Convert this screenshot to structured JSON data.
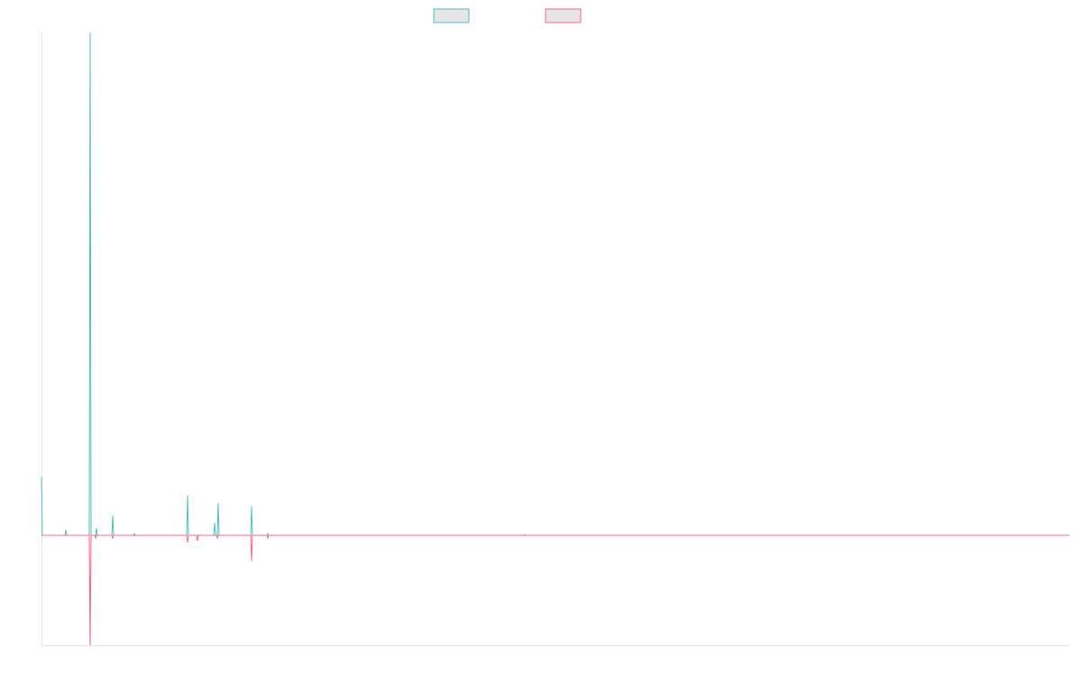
{
  "chart_data": {
    "type": "line",
    "title": "",
    "xlabel": "",
    "ylabel": "",
    "grid": false,
    "legend_position": "top-center",
    "x": [
      0,
      1,
      2,
      3,
      4,
      5,
      6,
      7,
      8,
      9,
      10,
      11,
      12,
      13,
      14,
      15,
      16,
      17,
      18,
      19,
      20,
      21,
      22,
      23,
      24,
      25,
      26,
      27,
      28,
      29,
      30,
      31,
      32,
      33,
      34,
      35,
      36,
      37,
      38,
      39,
      40,
      41,
      42,
      43,
      44,
      45,
      46,
      47,
      48,
      49,
      50,
      51,
      52,
      53,
      54,
      55,
      56,
      57,
      58,
      59,
      60,
      61,
      62,
      63,
      64,
      65,
      66,
      67,
      68,
      69,
      70,
      71,
      72,
      73,
      74,
      75,
      76,
      77,
      78,
      79,
      80,
      81,
      82,
      83,
      84,
      85,
      86,
      87,
      88,
      89,
      90,
      91,
      92,
      93,
      94,
      95,
      96,
      97,
      98,
      99,
      100,
      101,
      102,
      103,
      104,
      105,
      106,
      107,
      108,
      109,
      110,
      111,
      112,
      113,
      114,
      115,
      116,
      117,
      118,
      119,
      120,
      121,
      122,
      123,
      124,
      125,
      126,
      127,
      128,
      129,
      130,
      131,
      132,
      133,
      134,
      135,
      136,
      137,
      138,
      139,
      140,
      141,
      142,
      143,
      144,
      145,
      146,
      147,
      148,
      149,
      150,
      151,
      152,
      153,
      154,
      155,
      156,
      157,
      158,
      159,
      160,
      161,
      162,
      163,
      164,
      165,
      166,
      167,
      168,
      169,
      170,
      171,
      172,
      173,
      174,
      175,
      176,
      177,
      178,
      179,
      180,
      181,
      182,
      183,
      184,
      185,
      186,
      187,
      188,
      189,
      190,
      191,
      192,
      193,
      194,
      195,
      196,
      197,
      198,
      199,
      200,
      201,
      202,
      203,
      204,
      205,
      206,
      207,
      208,
      209,
      210,
      211,
      212,
      213,
      214,
      215,
      216,
      217,
      218,
      219,
      220,
      221,
      222,
      223,
      224,
      225,
      226,
      227,
      228,
      229,
      230,
      231,
      232,
      233,
      234,
      235,
      236,
      237,
      238,
      239,
      240,
      241,
      242,
      243,
      244,
      245,
      246,
      247,
      248,
      249,
      250,
      251,
      252,
      253,
      254,
      255,
      256,
      257,
      258,
      259,
      260,
      261,
      262,
      263,
      264,
      265,
      266,
      267,
      268,
      269,
      270,
      271,
      272,
      273,
      274,
      275,
      276,
      277,
      278,
      279,
      280,
      281,
      282,
      283,
      284,
      285,
      286,
      287,
      288,
      289,
      290,
      291,
      292,
      293,
      294,
      295,
      296,
      297,
      298,
      299,
      300,
      301,
      302,
      303,
      304,
      305,
      306,
      307,
      308,
      309,
      310,
      311,
      312,
      313,
      314,
      315,
      316,
      317,
      318,
      319,
      320,
      321,
      322,
      323,
      324,
      325,
      326,
      327,
      328,
      329,
      330,
      331,
      332,
      333,
      334,
      335,
      336,
      337,
      338,
      339,
      340,
      341,
      342,
      343,
      344,
      345,
      346,
      347,
      348,
      349,
      350,
      351,
      352,
      353,
      354,
      355,
      356,
      357,
      358,
      359,
      360,
      361,
      362,
      363,
      364,
      365,
      366,
      367,
      368,
      369,
      370,
      371,
      372,
      373,
      374,
      375,
      376,
      377,
      378,
      379,
      380,
      381,
      382,
      383,
      384,
      385,
      386,
      387,
      388,
      389,
      390,
      391,
      392,
      393,
      394,
      395,
      396,
      397,
      398,
      399,
      400,
      401,
      402,
      403,
      404,
      405,
      406,
      407,
      408,
      409,
      410,
      411,
      412,
      413,
      414,
      415,
      416,
      417,
      418,
      419,
      420,
      421,
      422,
      423,
      424,
      425,
      426,
      427,
      428,
      429,
      430,
      431,
      432,
      433,
      434,
      435,
      436,
      437,
      438,
      439,
      440,
      441,
      442,
      443,
      444,
      445,
      446,
      447,
      448,
      449,
      450,
      451,
      452,
      453,
      454,
      455,
      456,
      457,
      458,
      459,
      460,
      461,
      462,
      463,
      464,
      465,
      466,
      467,
      468,
      469,
      470,
      471,
      472,
      473,
      474,
      475,
      476,
      477,
      478,
      479,
      480,
      481,
      482,
      483,
      484,
      485,
      486,
      487,
      488,
      489,
      490,
      491,
      492,
      493,
      494,
      495,
      496,
      497,
      498,
      499,
      500,
      501,
      502,
      503,
      504,
      505,
      506,
      507,
      508,
      509,
      510,
      511,
      512,
      513,
      514,
      515,
      516,
      517,
      518,
      519,
      520,
      521,
      522,
      523,
      524,
      525,
      526,
      527,
      528,
      529,
      530,
      531,
      532,
      533,
      534,
      535,
      536,
      537,
      538,
      539,
      540,
      541,
      542,
      543,
      544,
      545,
      546,
      547,
      548,
      549,
      550,
      551,
      552,
      553,
      554,
      555,
      556,
      557,
      558,
      559,
      560,
      561,
      562,
      563,
      564,
      565,
      566,
      567,
      568,
      569,
      570,
      571,
      572,
      573,
      574,
      575,
      576,
      577,
      578,
      579,
      580,
      581,
      582,
      583,
      584,
      585,
      586,
      587,
      588,
      589,
      590,
      591,
      592,
      593,
      594,
      595,
      596,
      597,
      598,
      599,
      600,
      601,
      602,
      603,
      604,
      605,
      606,
      607,
      608,
      609,
      610,
      611,
      612,
      613,
      614,
      615,
      616,
      617,
      618,
      619,
      620,
      621,
      622,
      623,
      624,
      625,
      626,
      627,
      628,
      629,
      630,
      631,
      632,
      633,
      634,
      635,
      636,
      637,
      638,
      639,
      640,
      641,
      642,
      643,
      644,
      645,
      646,
      647,
      648,
      649,
      650,
      651,
      652,
      653,
      654,
      655,
      656,
      657,
      658,
      659,
      660,
      661,
      662,
      663,
      664,
      665,
      666,
      667,
      668,
      669,
      670,
      671,
      672,
      673,
      674,
      675,
      676,
      677,
      678,
      679,
      680,
      681,
      682,
      683,
      684,
      685,
      686,
      687,
      688,
      689,
      690,
      691,
      692,
      693,
      694,
      695,
      696,
      697,
      698,
      699,
      700,
      701,
      702,
      703,
      704,
      705,
      706,
      707,
      708,
      709,
      710,
      711,
      712,
      713,
      714,
      715,
      716,
      717,
      718,
      719,
      720,
      721,
      722,
      723,
      724,
      725,
      726,
      727,
      728,
      729,
      730,
      731,
      732,
      733,
      734,
      735,
      736,
      737,
      738,
      739,
      740,
      741,
      742,
      743,
      744,
      745,
      746,
      747,
      748,
      749,
      750,
      751,
      752,
      753,
      754,
      755,
      756,
      757,
      758,
      759,
      760,
      761,
      762,
      763,
      764,
      765,
      766,
      767,
      768,
      769,
      770,
      771,
      772,
      773,
      774,
      775,
      776,
      777,
      778,
      779,
      780,
      781,
      782,
      783,
      784,
      785,
      786,
      787,
      788,
      789,
      790,
      791,
      792,
      793,
      794,
      795,
      796,
      797,
      798,
      799,
      800,
      801,
      802,
      803,
      804,
      805,
      806,
      807,
      808,
      809,
      810,
      811,
      812,
      813,
      814,
      815,
      816,
      817,
      818,
      819,
      820,
      821,
      822,
      823,
      824,
      825,
      826,
      827,
      828,
      829,
      830,
      831,
      832,
      833,
      834,
      835,
      836,
      837,
      838,
      839,
      840,
      841,
      842,
      843,
      844,
      845,
      846,
      847,
      848,
      849,
      850,
      851,
      852,
      853,
      854,
      855,
      856,
      857,
      858,
      859,
      860,
      861,
      862,
      863,
      864,
      865,
      866,
      867,
      868,
      869,
      870,
      871,
      872,
      873,
      874,
      875,
      876,
      877,
      878,
      879,
      880,
      881,
      882,
      883,
      884,
      885,
      886,
      887,
      888,
      889,
      890,
      891,
      892,
      893,
      894,
      895,
      896,
      897,
      898,
      899,
      900,
      901,
      902,
      903,
      904,
      905,
      906,
      907,
      908,
      909,
      910,
      911,
      912,
      913,
      914,
      915,
      916,
      917,
      918,
      919,
      920,
      921,
      922,
      923,
      924,
      925,
      926,
      927,
      928,
      929,
      930,
      931,
      932,
      933,
      934,
      935,
      936,
      937,
      938,
      939,
      940,
      941,
      942,
      943,
      944,
      945,
      946,
      947,
      948,
      949,
      950,
      951,
      952,
      953,
      954,
      955,
      956,
      957,
      958,
      959,
      960,
      961,
      962,
      963,
      964,
      965,
      966,
      967,
      968,
      969,
      970,
      971,
      972,
      973,
      974,
      975,
      976,
      977,
      978,
      979,
      980,
      981,
      982,
      983,
      984,
      985,
      986,
      987,
      988,
      989,
      990,
      991,
      992,
      993,
      994,
      995,
      996,
      997,
      998,
      999,
      1000,
      1001,
      1002,
      1003,
      1004,
      1005,
      1006,
      1007,
      1008,
      1009,
      1010,
      1011,
      1012,
      1013,
      1014,
      1015,
      1016,
      1017,
      1018,
      1019,
      1020,
      1021,
      1022,
      1023,
      1024,
      1025,
      1026,
      1027,
      1028,
      1029,
      1030,
      1031,
      1032,
      1033,
      1034,
      1035,
      1036,
      1037,
      1038,
      1039,
      1040,
      1041,
      1042,
      1043,
      1044,
      1045,
      1046,
      1047,
      1048,
      1049,
      1050,
      1051,
      1052,
      1053,
      1054,
      1055,
      1056,
      1057,
      1058,
      1059,
      1060,
      1061,
      1062,
      1063,
      1064,
      1065,
      1066,
      1067,
      1068,
      1069,
      1070,
      1071,
      1072,
      1073,
      1074,
      1075,
      1076,
      1077,
      1078,
      1079,
      1080,
      1081,
      1082,
      1083,
      1084,
      1085,
      1086,
      1087,
      1088,
      1089,
      1090,
      1091,
      1092,
      1093,
      1094,
      1095,
      1096,
      1097,
      1098,
      1099,
      1100,
      1101,
      1102,
      1103,
      1104,
      1105,
      1106,
      1107,
      1108,
      1109,
      1110,
      1111,
      1112,
      1113,
      1114,
      1115,
      1116,
      1117,
      1118,
      1119,
      1120,
      1121,
      1122,
      1123,
      1124,
      1125,
      1126,
      1127,
      1128,
      1129,
      1130,
      1131,
      1132,
      1133,
      1134,
      1135,
      1136,
      1137,
      1138,
      1139,
      1140
    ],
    "ylim": [
      -122,
      558
    ],
    "series": [
      {
        "name": "",
        "color": "#4bc0c0",
        "fill": "#e6e6e6",
        "spikes": [
          [
            0,
            65
          ],
          [
            1,
            0
          ],
          [
            27,
            6
          ],
          [
            54,
            558
          ],
          [
            61,
            8
          ],
          [
            79,
            22
          ],
          [
            103,
            2
          ],
          [
            162,
            44
          ],
          [
            192,
            14
          ],
          [
            196,
            36
          ],
          [
            233,
            32
          ],
          [
            251,
            2
          ],
          [
            536,
            1
          ]
        ]
      },
      {
        "name": "",
        "color": "#ff6384",
        "fill": "#e6e6e6",
        "spikes": [
          [
            54,
            -122
          ],
          [
            60,
            -3
          ],
          [
            79,
            -3
          ],
          [
            162,
            -8
          ],
          [
            173,
            -6
          ],
          [
            195,
            -3
          ],
          [
            233,
            -28
          ],
          [
            251,
            -3
          ]
        ]
      }
    ]
  }
}
